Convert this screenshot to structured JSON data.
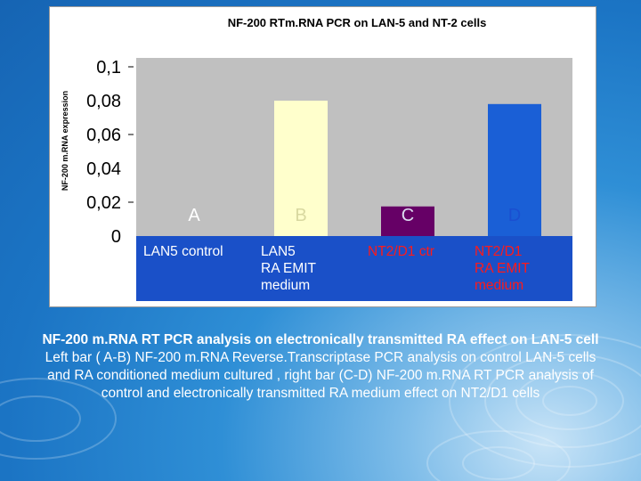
{
  "chart_data": {
    "type": "bar",
    "title": "NF-200 RTm.RNA PCR on LAN-5 and NT-2 cells",
    "ylabel": "NF-200 m.RNA expression",
    "xlabel": "",
    "ylim": [
      0,
      0.1
    ],
    "y_ticks": [
      "0",
      "0,02",
      "0,04",
      "0,06",
      "0,08",
      "0,1"
    ],
    "y_tick_values": [
      0,
      0.02,
      0.04,
      0.06,
      0.08,
      0.1
    ],
    "categories": [
      "LAN5 control",
      "LAN5 RA EMIT medium",
      "NT2/D1 ctr",
      "NT2/D1 RA EMIT medium"
    ],
    "category_lines": [
      [
        "LAN5 control"
      ],
      [
        "LAN5",
        "RA EMIT",
        "medium"
      ],
      [
        "NT2/D1 ctr"
      ],
      [
        "NT2/D1",
        "RA EMIT",
        "medium"
      ]
    ],
    "category_colors": [
      "#ffffff",
      "#ffffff",
      "#ff1a1a",
      "#ff1a1a"
    ],
    "bar_letters": [
      "A",
      "B",
      "C",
      "D"
    ],
    "values": [
      0.0,
      0.08,
      0.0175,
      0.078
    ],
    "bar_colors": [
      "#1a3cff",
      "#ffffcc",
      "#660066",
      "#1a5fd6"
    ],
    "letter_colors": [
      "#ffffff",
      "#d8d8a0",
      "#dcdcf0",
      "#1a4fd0"
    ],
    "grid": false,
    "background": "#c0c0c0",
    "axis_band_color": "#1a50c8"
  },
  "caption": {
    "bold_line": "NF-200 m.RNA RT PCR analysis on electronically transmitted RA effect on LAN-5 cell",
    "body": "Left bar ( A-B) NF-200 m.RNA Reverse.Transcriptase PCR analysis on control LAN-5 cells and RA conditioned medium cultured , right bar (C-D) NF-200 m.RNA RT PCR analysis of control and electronically transmitted RA medium effect on NT2/D1 cells"
  }
}
